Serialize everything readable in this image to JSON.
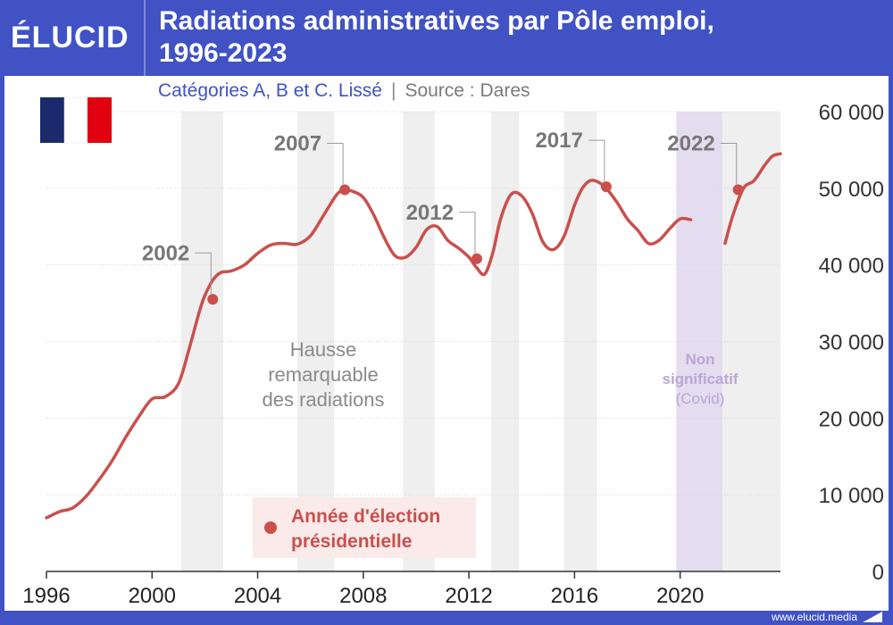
{
  "header": {
    "logo_text": "ÉLUCID",
    "title_line1": "Radiations administratives par Pôle emploi,",
    "title_line2": "1996-2023",
    "subtitle": "Catégories A, B et C. Lissé",
    "separator": "|",
    "source": "Source : Dares"
  },
  "footer": {
    "url": "www.elucid.media"
  },
  "colors": {
    "brand": "#4052c4",
    "line": "#c9504d",
    "band": "#efefef",
    "covid": "#e4dcef",
    "covid_text": "#b9a6d6"
  },
  "flag": {
    "icon": "france-flag-icon",
    "colors": [
      "#1a2a6c",
      "#ffffff",
      "#e1000f"
    ]
  },
  "chart_data": {
    "type": "line",
    "title": "Radiations administratives par Pôle emploi, 1996-2023",
    "xlim": [
      1996,
      2023.8
    ],
    "ylim": [
      0,
      60000
    ],
    "x_ticks": [
      "1996",
      "2000",
      "2004",
      "2008",
      "2012",
      "2016",
      "2020"
    ],
    "y_ticks": [
      "0",
      "10 000",
      "20 000",
      "30 000",
      "40 000",
      "50 000",
      "60 000"
    ],
    "grid": "horizontal",
    "series": [
      {
        "x": [
          1996.0,
          1996.5,
          1997.0,
          1997.5,
          1998.0,
          1998.5,
          1999.0,
          1999.5,
          2000.0,
          2000.5,
          2001.0,
          2001.4,
          2001.8,
          2002.0,
          2002.3,
          2002.6,
          2003.0,
          2003.5,
          2004.0,
          2004.5,
          2005.0,
          2005.5,
          2006.0,
          2006.5,
          2007.0,
          2007.3,
          2007.6,
          2008.0,
          2008.4,
          2008.8,
          2009.2,
          2009.6,
          2010.0,
          2010.4,
          2010.8,
          2011.2,
          2011.6,
          2012.0,
          2012.3,
          2012.6,
          2012.9,
          2013.2,
          2013.6,
          2014.0,
          2014.4,
          2014.8,
          2015.2,
          2015.6,
          2016.0,
          2016.3,
          2016.6,
          2016.9,
          2017.2,
          2017.6,
          2018.0,
          2018.4,
          2018.8,
          2019.2,
          2019.6,
          2020.0,
          2020.4
        ],
        "y": [
          7000,
          7800,
          8300,
          9800,
          12000,
          14500,
          17500,
          20200,
          22500,
          22800,
          24500,
          29000,
          34000,
          36000,
          38000,
          39000,
          39200,
          40000,
          41500,
          42600,
          42800,
          42700,
          43800,
          46500,
          49200,
          49800,
          49600,
          48800,
          46500,
          43500,
          41200,
          41000,
          42300,
          44600,
          45000,
          43200,
          42200,
          41000,
          39600,
          38800,
          41500,
          46000,
          49200,
          49000,
          46700,
          43000,
          42000,
          43700,
          47800,
          50000,
          51000,
          50800,
          50000,
          48200,
          46000,
          44500,
          42800,
          43200,
          44700,
          46000,
          45900
        ]
      },
      {
        "x": [
          2021.7,
          2022.0,
          2022.4,
          2022.8,
          2023.2,
          2023.5,
          2023.8
        ],
        "y": [
          42800,
          46500,
          50000,
          51000,
          53000,
          54200,
          54500
        ]
      }
    ],
    "election_points": [
      {
        "year": "2002",
        "x": 2002.3,
        "y": 35500
      },
      {
        "year": "2007",
        "x": 2007.3,
        "y": 49800
      },
      {
        "year": "2012",
        "x": 2012.3,
        "y": 40800
      },
      {
        "year": "2017",
        "x": 2017.2,
        "y": 50200
      },
      {
        "year": "2022",
        "x": 2022.2,
        "y": 49800
      }
    ],
    "bands": [
      [
        2001.1,
        2002.7
      ],
      [
        2005.5,
        2006.9
      ],
      [
        2009.5,
        2010.7
      ],
      [
        2012.85,
        2013.9
      ],
      [
        2015.6,
        2016.85
      ]
    ],
    "covid_band": [
      2019.85,
      2021.6
    ],
    "shade_after": 2021.6,
    "annotations": {
      "hausse": [
        "Hausse",
        "remarquable",
        "des radiations"
      ],
      "covid": [
        "Non",
        "significatif",
        "(Covid)"
      ]
    },
    "legend": {
      "label_line1": "Année d'élection",
      "label_line2": "présidentielle",
      "position": "bottom-left"
    }
  }
}
